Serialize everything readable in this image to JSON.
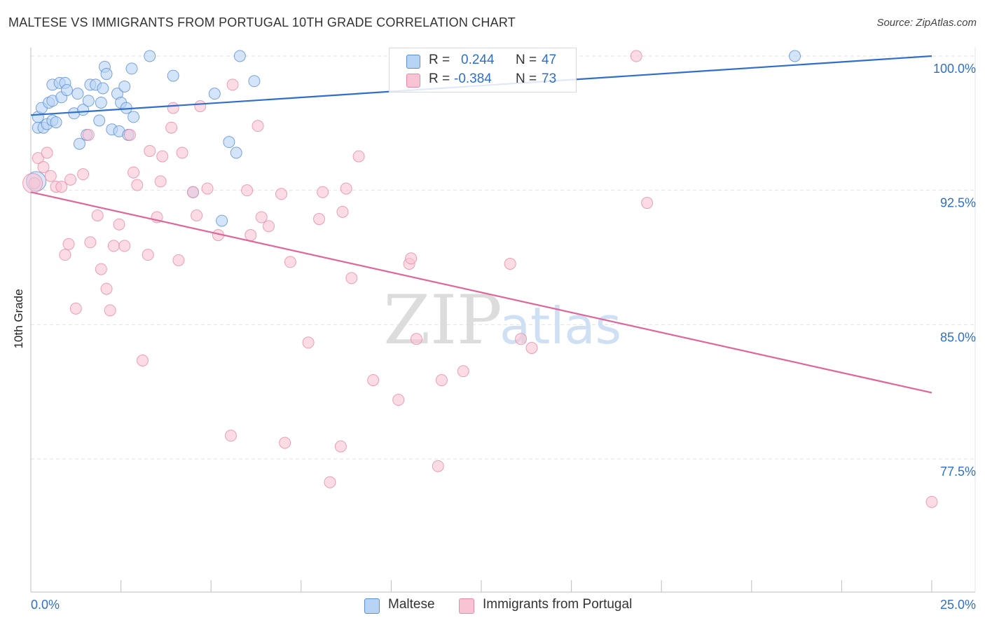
{
  "title": "MALTESE VS IMMIGRANTS FROM PORTUGAL 10TH GRADE CORRELATION CHART",
  "source": "Source: ZipAtlas.com",
  "watermark": {
    "zip": "ZIP",
    "atlas": "atlas"
  },
  "colors": {
    "maltese_fill": "#b8d4f5",
    "maltese_stroke": "#5b8fd6",
    "maltese_line": "#2f6fcb",
    "portugal_fill": "#f8c4d4",
    "portugal_stroke": "#e88aa8",
    "portugal_line": "#e0669a",
    "value_text": "#2f6fcb",
    "grid": "#e2e2e2"
  },
  "legend": {
    "rows": [
      {
        "r_label": "R =",
        "r_value": "0.244",
        "n_label": "N =",
        "n_value": "47"
      },
      {
        "r_label": "R =",
        "r_value": "-0.384",
        "n_label": "N =",
        "n_value": "73"
      }
    ]
  },
  "chart_data": {
    "type": "scatter",
    "xlabel": "",
    "ylabel": "10th Grade",
    "xlim": [
      0,
      25
    ],
    "ylim": [
      70.0,
      101.0
    ],
    "x_tick_labels": {
      "min": "0.0%",
      "max": "25.0%"
    },
    "y_ticks": [
      {
        "value": 100.0,
        "label": "100.0%"
      },
      {
        "value": 92.5,
        "label": "92.5%"
      },
      {
        "value": 85.0,
        "label": "85.0%"
      },
      {
        "value": 77.5,
        "label": "77.5%"
      }
    ],
    "series": [
      {
        "name": "Maltese",
        "r": 0.244,
        "n": 47,
        "trend": {
          "x": [
            0.0,
            25.0
          ],
          "y": [
            96.7,
            100.0
          ]
        },
        "points": [
          [
            0.2,
            96.0
          ],
          [
            0.2,
            96.6
          ],
          [
            0.3,
            97.1
          ],
          [
            0.35,
            96.0
          ],
          [
            0.45,
            96.2
          ],
          [
            0.5,
            97.4
          ],
          [
            0.6,
            96.4
          ],
          [
            0.6,
            98.4
          ],
          [
            0.6,
            97.5
          ],
          [
            0.7,
            96.3
          ],
          [
            0.8,
            98.5
          ],
          [
            0.85,
            97.7
          ],
          [
            0.95,
            98.5
          ],
          [
            1.0,
            98.1
          ],
          [
            1.2,
            96.8
          ],
          [
            1.3,
            97.9
          ],
          [
            1.35,
            95.1
          ],
          [
            1.45,
            97.0
          ],
          [
            1.55,
            95.6
          ],
          [
            1.6,
            97.5
          ],
          [
            1.65,
            98.4
          ],
          [
            1.8,
            98.4
          ],
          [
            1.9,
            96.4
          ],
          [
            1.95,
            97.4
          ],
          [
            2.0,
            98.2
          ],
          [
            2.05,
            99.4
          ],
          [
            2.25,
            95.9
          ],
          [
            2.4,
            97.9
          ],
          [
            2.45,
            95.8
          ],
          [
            2.5,
            97.4
          ],
          [
            2.6,
            98.3
          ],
          [
            2.65,
            97.1
          ],
          [
            2.7,
            95.6
          ],
          [
            2.8,
            99.3
          ],
          [
            2.85,
            96.6
          ],
          [
            3.3,
            100.0
          ],
          [
            3.95,
            98.9
          ],
          [
            4.5,
            92.4
          ],
          [
            5.1,
            97.9
          ],
          [
            5.3,
            90.8
          ],
          [
            5.5,
            95.2
          ],
          [
            5.7,
            94.6
          ],
          [
            5.8,
            100.0
          ],
          [
            6.2,
            98.6
          ],
          [
            21.2,
            100.0
          ],
          [
            0.15,
            93.0
          ],
          [
            2.1,
            99.0
          ]
        ]
      },
      {
        "name": "Immigrants from Portugal",
        "r": -0.384,
        "n": 73,
        "trend": {
          "x": [
            0.0,
            25.0
          ],
          "y": [
            92.4,
            81.2
          ]
        },
        "points": [
          [
            0.1,
            92.9
          ],
          [
            0.2,
            94.3
          ],
          [
            0.35,
            93.8
          ],
          [
            0.45,
            94.6
          ],
          [
            0.55,
            93.3
          ],
          [
            0.7,
            92.7
          ],
          [
            0.85,
            92.7
          ],
          [
            0.95,
            88.9
          ],
          [
            1.05,
            89.5
          ],
          [
            1.1,
            93.1
          ],
          [
            1.25,
            85.9
          ],
          [
            1.45,
            93.4
          ],
          [
            1.6,
            95.6
          ],
          [
            1.65,
            89.6
          ],
          [
            1.85,
            91.1
          ],
          [
            1.95,
            88.1
          ],
          [
            2.1,
            87.0
          ],
          [
            2.2,
            85.8
          ],
          [
            2.3,
            89.4
          ],
          [
            2.45,
            90.6
          ],
          [
            2.6,
            89.4
          ],
          [
            2.75,
            95.6
          ],
          [
            2.85,
            93.5
          ],
          [
            2.95,
            92.8
          ],
          [
            3.1,
            83.0
          ],
          [
            3.25,
            88.9
          ],
          [
            3.3,
            94.7
          ],
          [
            3.5,
            91.0
          ],
          [
            3.6,
            93.0
          ],
          [
            3.65,
            94.4
          ],
          [
            3.9,
            96.0
          ],
          [
            3.95,
            97.1
          ],
          [
            4.1,
            88.6
          ],
          [
            4.2,
            94.6
          ],
          [
            4.5,
            92.4
          ],
          [
            4.6,
            91.1
          ],
          [
            4.7,
            97.2
          ],
          [
            4.9,
            92.6
          ],
          [
            5.2,
            90.0
          ],
          [
            5.55,
            78.8
          ],
          [
            5.6,
            98.4
          ],
          [
            6.0,
            92.5
          ],
          [
            6.1,
            90.0
          ],
          [
            6.3,
            96.1
          ],
          [
            6.4,
            91.0
          ],
          [
            6.6,
            90.5
          ],
          [
            6.95,
            92.3
          ],
          [
            7.05,
            78.4
          ],
          [
            7.2,
            88.5
          ],
          [
            7.7,
            84.0
          ],
          [
            8.0,
            90.9
          ],
          [
            8.1,
            92.4
          ],
          [
            8.3,
            76.2
          ],
          [
            8.6,
            78.2
          ],
          [
            8.65,
            91.3
          ],
          [
            8.75,
            92.6
          ],
          [
            8.9,
            87.6
          ],
          [
            9.1,
            94.4
          ],
          [
            9.5,
            81.9
          ],
          [
            10.2,
            80.8
          ],
          [
            10.5,
            88.4
          ],
          [
            10.55,
            88.7
          ],
          [
            10.7,
            84.2
          ],
          [
            11.3,
            77.1
          ],
          [
            11.4,
            81.9
          ],
          [
            12.0,
            82.4
          ],
          [
            13.3,
            88.4
          ],
          [
            13.6,
            84.2
          ],
          [
            13.9,
            83.7
          ],
          [
            16.8,
            100.0
          ],
          [
            17.1,
            91.8
          ],
          [
            25.0,
            75.1
          ],
          [
            0.05,
            92.9
          ]
        ]
      }
    ]
  },
  "bottom_legend": {
    "series1": "Maltese",
    "series2": "Immigrants from Portugal"
  }
}
